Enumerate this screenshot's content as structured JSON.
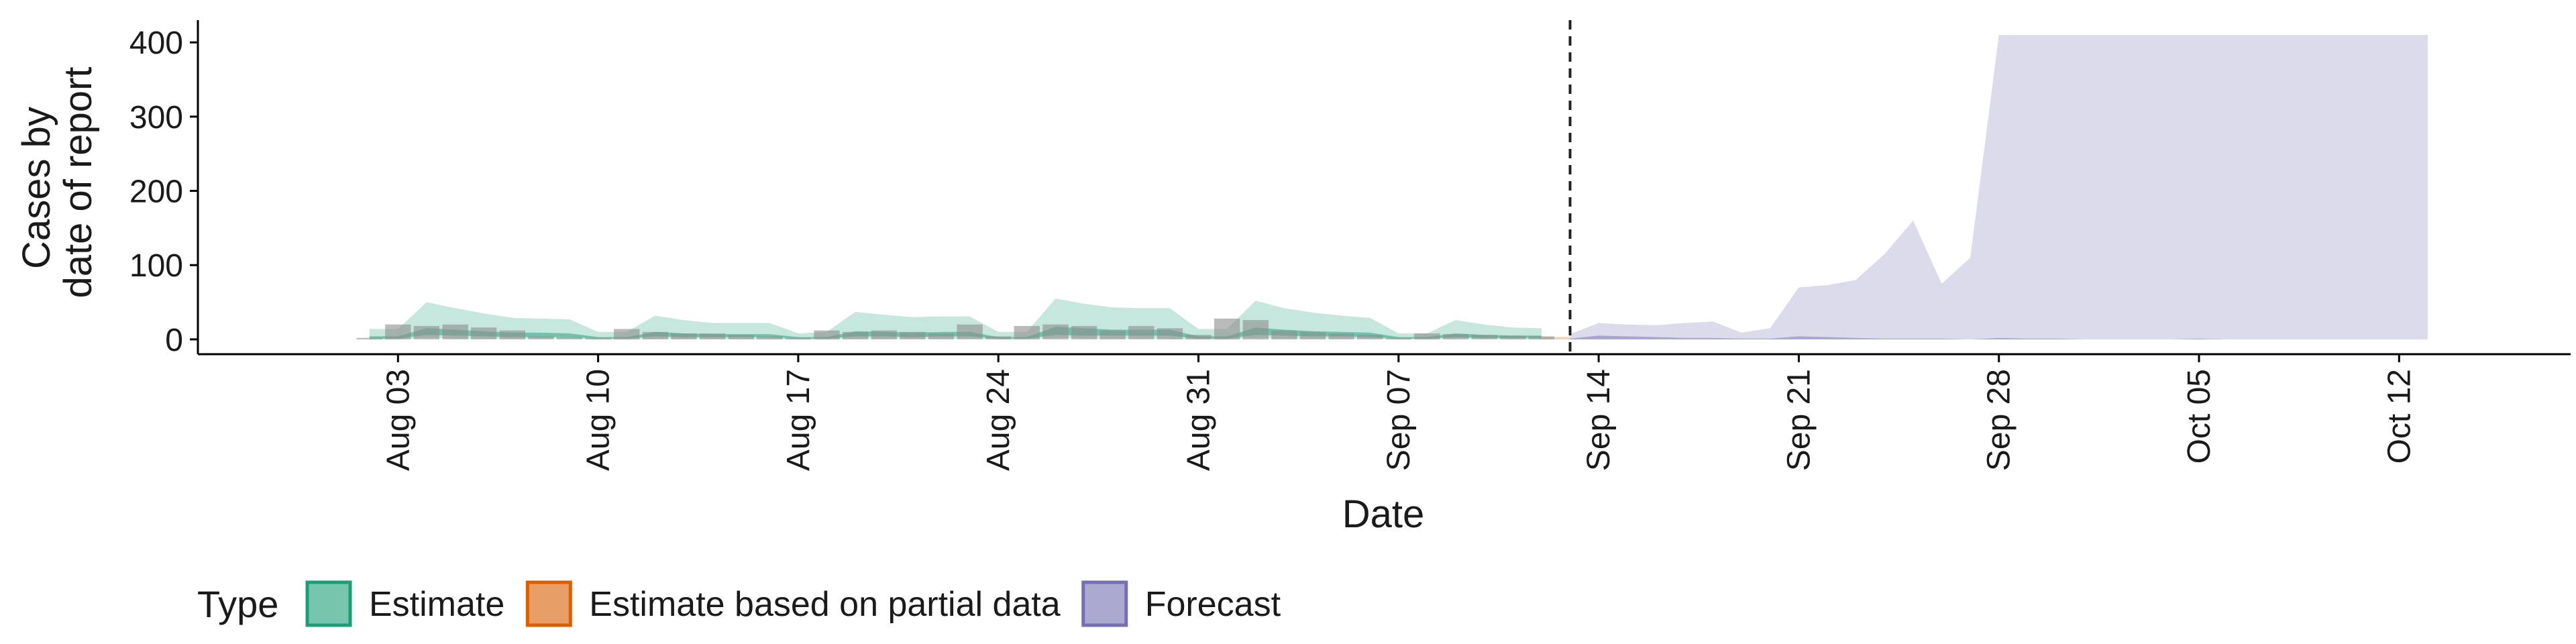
{
  "chart_data": {
    "type": "area",
    "title": "",
    "xlabel": "Date",
    "ylabel_lines": [
      "Cases by",
      "date of report"
    ],
    "ylim": [
      -20,
      430
    ],
    "xlim": [
      "2020-07-27",
      "2020-10-18"
    ],
    "yticks": [
      0,
      100,
      200,
      300,
      400
    ],
    "xticks": [
      {
        "date": "2020-08-03",
        "label": "Aug 03"
      },
      {
        "date": "2020-08-10",
        "label": "Aug 10"
      },
      {
        "date": "2020-08-17",
        "label": "Aug 17"
      },
      {
        "date": "2020-08-24",
        "label": "Aug 24"
      },
      {
        "date": "2020-08-31",
        "label": "Aug 31"
      },
      {
        "date": "2020-09-07",
        "label": "Sep 07"
      },
      {
        "date": "2020-09-14",
        "label": "Sep 14"
      },
      {
        "date": "2020-09-21",
        "label": "Sep 21"
      },
      {
        "date": "2020-09-28",
        "label": "Sep 28"
      },
      {
        "date": "2020-10-05",
        "label": "Oct 05"
      },
      {
        "date": "2020-10-12",
        "label": "Oct 12"
      }
    ],
    "grid": false,
    "legend_position": "bottom-left",
    "legend": {
      "title": "Type",
      "items": [
        {
          "label": "Estimate",
          "color": "#1b9e77"
        },
        {
          "label": "Estimate based on partial data",
          "color": "#d95f02"
        },
        {
          "label": "Forecast",
          "color": "#7570b3"
        }
      ]
    },
    "forecast_start": "2020-09-13",
    "estimate": {
      "color": "#1b9e77",
      "dates": [
        "2020-08-02",
        "2020-08-03",
        "2020-08-04",
        "2020-08-05",
        "2020-08-06",
        "2020-08-07",
        "2020-08-08",
        "2020-08-09",
        "2020-08-10",
        "2020-08-11",
        "2020-08-12",
        "2020-08-13",
        "2020-08-14",
        "2020-08-15",
        "2020-08-16",
        "2020-08-17",
        "2020-08-18",
        "2020-08-19",
        "2020-08-20",
        "2020-08-21",
        "2020-08-22",
        "2020-08-23",
        "2020-08-24",
        "2020-08-25",
        "2020-08-26",
        "2020-08-27",
        "2020-08-28",
        "2020-08-29",
        "2020-08-30",
        "2020-08-31",
        "2020-09-01",
        "2020-09-02",
        "2020-09-03",
        "2020-09-04",
        "2020-09-05",
        "2020-09-06",
        "2020-09-07",
        "2020-09-08",
        "2020-09-09",
        "2020-09-10",
        "2020-09-11",
        "2020-09-12"
      ],
      "outer_upper": [
        14,
        14,
        50,
        42,
        35,
        29,
        28,
        27,
        10,
        10,
        32,
        26,
        22,
        22,
        22,
        8,
        10,
        37,
        33,
        30,
        31,
        31,
        10,
        10,
        55,
        48,
        43,
        42,
        42,
        14,
        14,
        52,
        42,
        36,
        32,
        29,
        8,
        8,
        26,
        20,
        16,
        15
      ],
      "outer_lower": [
        0,
        0,
        2,
        1,
        1,
        1,
        1,
        1,
        0,
        0,
        1,
        1,
        1,
        0,
        0,
        0,
        0,
        1,
        1,
        1,
        1,
        1,
        0,
        0,
        2,
        1,
        1,
        1,
        1,
        0,
        0,
        2,
        1,
        1,
        1,
        1,
        0,
        0,
        1,
        1,
        0,
        0
      ],
      "inner_upper": [
        4,
        4,
        15,
        13,
        11,
        9,
        9,
        8,
        3,
        3,
        10,
        8,
        7,
        7,
        7,
        3,
        3,
        11,
        10,
        9,
        10,
        10,
        3,
        3,
        17,
        15,
        13,
        13,
        13,
        4,
        4,
        16,
        13,
        11,
        10,
        9,
        3,
        3,
        8,
        6,
        5,
        5
      ],
      "inner_lower": [
        1,
        1,
        6,
        5,
        4,
        3,
        3,
        3,
        1,
        1,
        4,
        3,
        3,
        3,
        3,
        1,
        1,
        4,
        4,
        3,
        4,
        4,
        1,
        1,
        6,
        5,
        5,
        5,
        5,
        1,
        1,
        6,
        5,
        4,
        4,
        3,
        1,
        1,
        3,
        2,
        2,
        2
      ]
    },
    "partial": {
      "color": "#d95f02",
      "dates": [
        "2020-09-12",
        "2020-09-13"
      ],
      "upper": [
        3,
        3
      ],
      "lower": [
        0,
        0
      ]
    },
    "forecast": {
      "color": "#7570b3",
      "dates": [
        "2020-09-13",
        "2020-09-14",
        "2020-09-15",
        "2020-09-16",
        "2020-09-17",
        "2020-09-18",
        "2020-09-19",
        "2020-09-20",
        "2020-09-21",
        "2020-09-22",
        "2020-09-23",
        "2020-09-24",
        "2020-09-25",
        "2020-09-26",
        "2020-09-27",
        "2020-09-28",
        "2020-09-29",
        "2020-09-30",
        "2020-10-01",
        "2020-10-02",
        "2020-10-03",
        "2020-10-04",
        "2020-10-05",
        "2020-10-06",
        "2020-10-07",
        "2020-10-08",
        "2020-10-09",
        "2020-10-10",
        "2020-10-11",
        "2020-10-12",
        "2020-10-13"
      ],
      "outer_upper": [
        7,
        22,
        20,
        19,
        22,
        24,
        9,
        15,
        70,
        73,
        80,
        115,
        160,
        75,
        110,
        410,
        410,
        410,
        410,
        410,
        410,
        410,
        410,
        410,
        410,
        410,
        410,
        410,
        410,
        410,
        410
      ],
      "outer_lower": [
        0,
        0,
        0,
        0,
        0,
        0,
        0,
        0,
        0,
        0,
        0,
        0,
        0,
        0,
        0,
        0,
        0,
        0,
        0,
        0,
        0,
        0,
        0,
        0,
        0,
        0,
        0,
        0,
        0,
        0,
        0
      ],
      "inner_upper": [
        1,
        5,
        4,
        3,
        2,
        2,
        1,
        1,
        4,
        3,
        2,
        1,
        1,
        1,
        0,
        2,
        1,
        1,
        0,
        0,
        0,
        0,
        1,
        0,
        0,
        0,
        0,
        0,
        0,
        0,
        0
      ],
      "inner_lower": [
        0,
        0,
        0,
        0,
        0,
        0,
        0,
        0,
        0,
        0,
        0,
        0,
        0,
        0,
        0,
        0,
        0,
        0,
        0,
        0,
        0,
        0,
        0,
        0,
        0,
        0,
        0,
        0,
        0,
        0,
        0
      ]
    },
    "reported": {
      "color": "#8c8c8c",
      "dates": [
        "2020-08-02",
        "2020-08-03",
        "2020-08-04",
        "2020-08-05",
        "2020-08-06",
        "2020-08-07",
        "2020-08-08",
        "2020-08-09",
        "2020-08-10",
        "2020-08-11",
        "2020-08-12",
        "2020-08-13",
        "2020-08-14",
        "2020-08-15",
        "2020-08-16",
        "2020-08-17",
        "2020-08-18",
        "2020-08-19",
        "2020-08-20",
        "2020-08-21",
        "2020-08-22",
        "2020-08-23",
        "2020-08-24",
        "2020-08-25",
        "2020-08-26",
        "2020-08-27",
        "2020-08-28",
        "2020-08-29",
        "2020-08-30",
        "2020-08-31",
        "2020-09-01",
        "2020-09-02",
        "2020-09-03",
        "2020-09-04",
        "2020-09-05",
        "2020-09-06",
        "2020-09-07",
        "2020-09-08",
        "2020-09-09",
        "2020-09-10",
        "2020-09-11",
        "2020-09-12"
      ],
      "values": [
        2,
        20,
        18,
        20,
        16,
        12,
        4,
        3,
        2,
        14,
        10,
        8,
        8,
        6,
        4,
        2,
        12,
        10,
        12,
        10,
        8,
        20,
        4,
        18,
        20,
        18,
        12,
        18,
        15,
        6,
        28,
        26,
        12,
        10,
        8,
        6,
        2,
        8,
        7,
        6,
        5,
        4
      ]
    }
  }
}
